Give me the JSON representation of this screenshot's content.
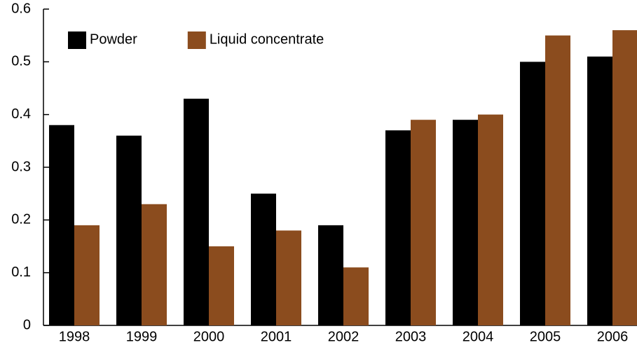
{
  "chart_data": {
    "type": "bar",
    "categories": [
      "1998",
      "1999",
      "2000",
      "2001",
      "2002",
      "2003",
      "2004",
      "2005",
      "2006"
    ],
    "series": [
      {
        "name": "Powder",
        "color": "#000000",
        "values": [
          0.38,
          0.36,
          0.43,
          0.25,
          0.19,
          0.37,
          0.39,
          0.5,
          0.51
        ]
      },
      {
        "name": "Liquid concentrate",
        "color": "#8b4c1e",
        "values": [
          0.19,
          0.23,
          0.15,
          0.18,
          0.11,
          0.39,
          0.4,
          0.55,
          0.56
        ]
      }
    ],
    "ylim": [
      0,
      0.6
    ],
    "yticks": [
      0,
      0.1,
      0.2,
      0.3,
      0.4,
      0.5,
      0.6
    ],
    "grid": false,
    "legend": "upper left"
  }
}
